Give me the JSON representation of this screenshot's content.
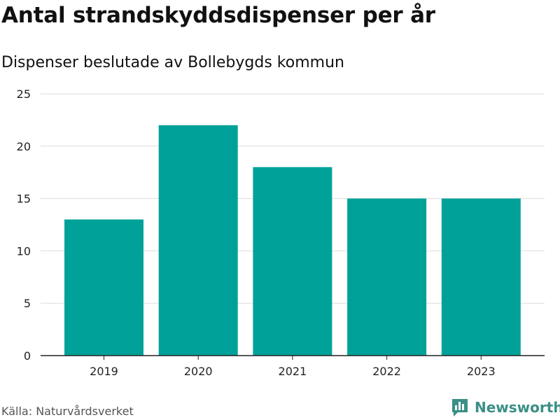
{
  "title": "Antal strandskyddsdispenser per år",
  "subtitle": "Dispenser beslutade av Bollebygds kommun",
  "source": "Källa: Naturvårdsverket",
  "brand": {
    "name": "Newsworthy",
    "icon": "newsworthy-logo-icon",
    "color": "#3a8f86"
  },
  "colors": {
    "bar": "#00a199",
    "grid": "#dddddd",
    "axis": "#222222"
  },
  "chart_data": {
    "type": "bar",
    "title": "Antal strandskyddsdispenser per år",
    "subtitle": "Dispenser beslutade av Bollebygds kommun",
    "categories": [
      "2019",
      "2020",
      "2021",
      "2022",
      "2023"
    ],
    "values": [
      13,
      22,
      18,
      15,
      15
    ],
    "xlabel": "",
    "ylabel": "",
    "ylim": [
      0,
      25
    ],
    "yticks": [
      0,
      5,
      10,
      15,
      20,
      25
    ],
    "grid": true,
    "legend": "none"
  }
}
